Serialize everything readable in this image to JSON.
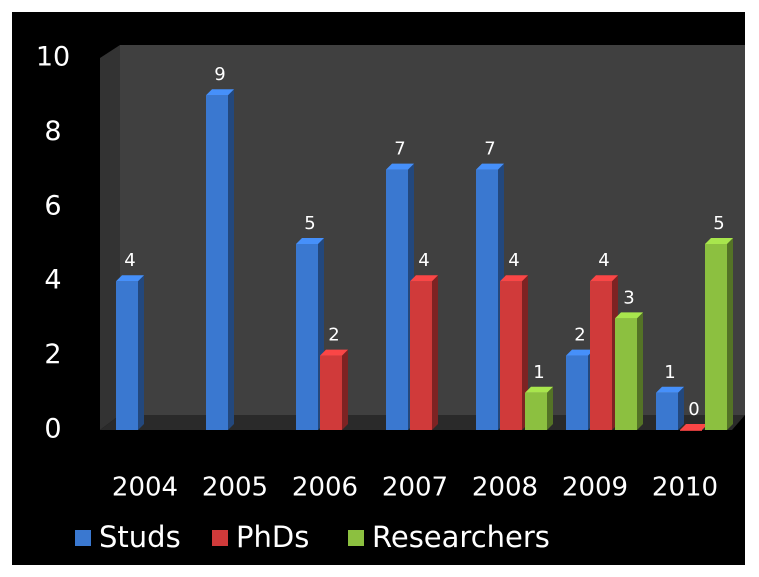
{
  "chart_data": {
    "type": "bar",
    "categories": [
      "2004",
      "2005",
      "2006",
      "2007",
      "2008",
      "2009",
      "2010"
    ],
    "series": [
      {
        "name": "Studs",
        "color": "#3a78d0",
        "values": [
          4,
          9,
          5,
          7,
          7,
          2,
          1
        ]
      },
      {
        "name": "PhDs",
        "color": "#d03a3a",
        "values": [
          null,
          null,
          2,
          4,
          4,
          4,
          0
        ]
      },
      {
        "name": "Researchers",
        "color": "#8cc040",
        "values": [
          null,
          null,
          null,
          null,
          1,
          3,
          5
        ]
      }
    ],
    "ylim": [
      0,
      10
    ],
    "yticks": [
      0,
      2,
      4,
      6,
      8,
      10
    ],
    "grid": false,
    "legend": "bottom"
  }
}
